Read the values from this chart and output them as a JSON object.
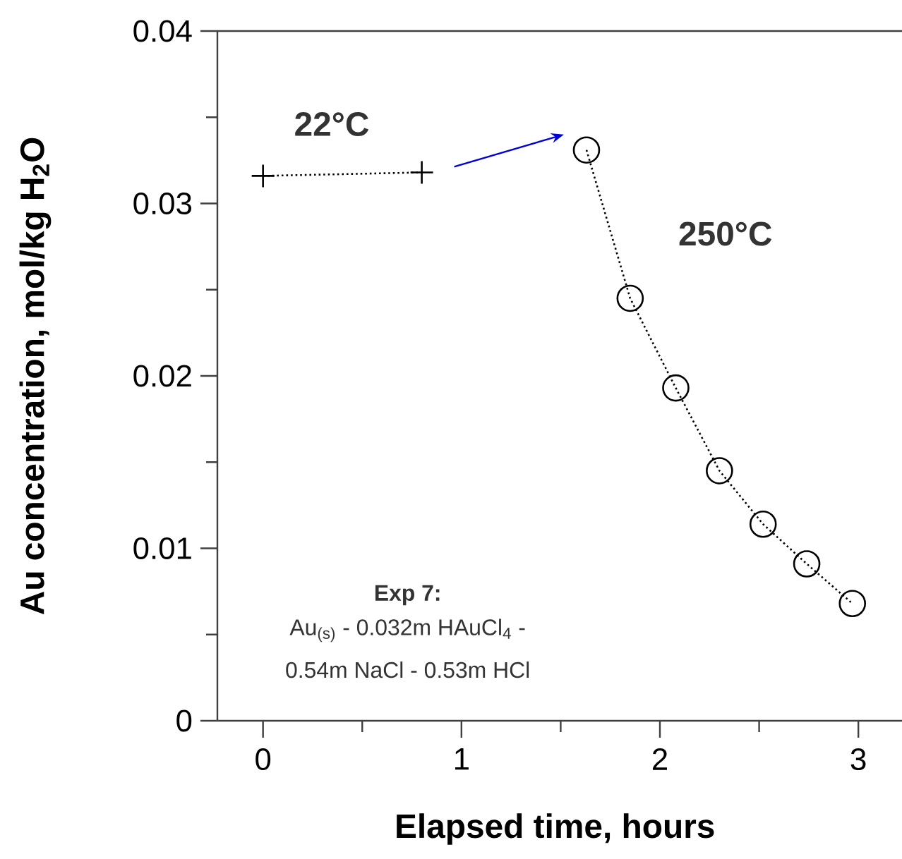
{
  "chart_data": {
    "type": "line",
    "xlabel": "Elapsed time, hours",
    "ylabel": "Au concentration, mol/kg H$_{2}$O",
    "xlim": [
      -0.23,
      3.22
    ],
    "ylim": [
      0,
      0.04
    ],
    "xticks": [
      0,
      {
        "value": 0.5,
        "label": null
      },
      1,
      {
        "value": 1.5,
        "label": null
      },
      2,
      {
        "value": 2.5,
        "label": null
      },
      3
    ],
    "yticks": [
      0,
      {
        "value": 0.005,
        "label": null
      },
      0.01,
      {
        "value": 0.015,
        "label": null
      },
      0.02,
      {
        "value": 0.025,
        "label": null
      },
      0.03,
      {
        "value": 0.035,
        "label": null
      },
      0.04
    ],
    "series": [
      {
        "color": "#000000",
        "marker": "cross",
        "line_style": "dotted",
        "x": [
          0,
          0.8
        ],
        "values": [
          0.0316,
          0.0318
        ]
      },
      {
        "color": "#000000",
        "marker": "circle",
        "line_style": "dotted",
        "x": [
          1.63,
          1.85,
          2.08,
          2.3,
          2.52,
          2.74,
          2.97
        ],
        "values": [
          0.0331,
          0.0245,
          0.0193,
          0.0145,
          0.0114,
          0.0091,
          0.0068
        ]
      }
    ],
    "annotations": [
      "22°C",
      "250°C",
      "Exp 7:",
      "Au$_{(s)}$ - 0.032m HAuCl$_{4}$ -",
      "0.54m NaCl - 0.53m HCl"
    ]
  }
}
